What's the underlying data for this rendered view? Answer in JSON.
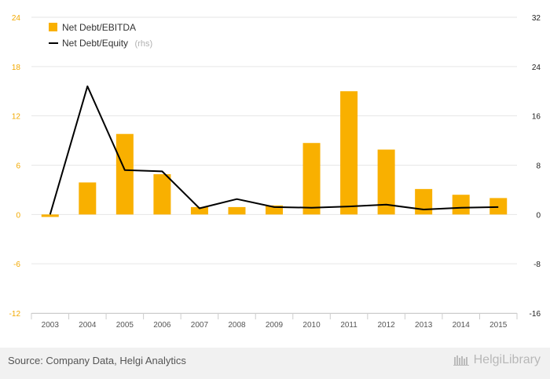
{
  "chart_data": {
    "type": "bar",
    "categories": [
      "2003",
      "2004",
      "2005",
      "2006",
      "2007",
      "2008",
      "2009",
      "2010",
      "2011",
      "2012",
      "2013",
      "2014",
      "2015"
    ],
    "series": [
      {
        "name": "Net Debt/EBITDA",
        "type": "bar",
        "axis": "left",
        "color": "#f9b000",
        "values": [
          -0.3,
          3.9,
          9.8,
          4.9,
          0.9,
          0.9,
          1.1,
          8.7,
          15.0,
          7.9,
          3.1,
          2.4,
          2.0
        ]
      },
      {
        "name": "Net Debt/Equity",
        "type": "line",
        "axis": "right",
        "color": "#000000",
        "values": [
          0,
          20.8,
          7.2,
          7.0,
          1.0,
          2.5,
          1.2,
          1.1,
          1.3,
          1.6,
          0.8,
          1.1,
          1.2
        ]
      }
    ],
    "left_axis": {
      "min": -12,
      "max": 24,
      "ticks": [
        "-12",
        "-6",
        "0",
        "6",
        "12",
        "18",
        "24"
      ]
    },
    "right_axis": {
      "min": -16,
      "max": 32,
      "ticks": [
        "-16",
        "-8",
        "0",
        "8",
        "16",
        "24",
        "32"
      ]
    },
    "legend": [
      {
        "label": "Net Debt/EBITDA",
        "suffix": ""
      },
      {
        "label": "Net Debt/Equity",
        "suffix": "(rhs)"
      }
    ],
    "legend_position": "top-left",
    "grid": true
  },
  "footer": {
    "source": "Source: Company Data, Helgi Analytics",
    "brand": "HelgiLibrary"
  }
}
